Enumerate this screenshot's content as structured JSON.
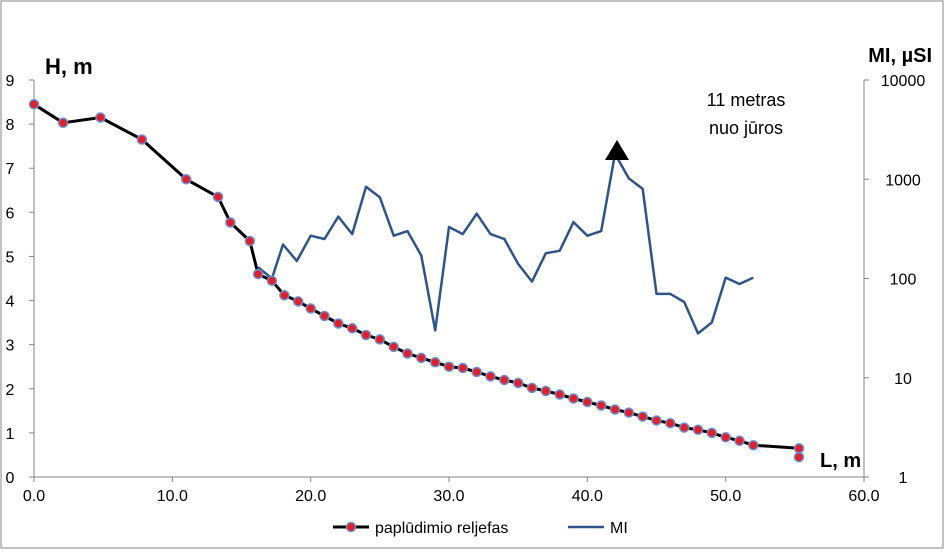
{
  "chart_data": {
    "type": "line",
    "y_left_label": "H, m",
    "y_right_label": "MI, µSI",
    "x_label": "L, m",
    "annotation": "11 metras nuo jūros",
    "x_range": [
      0,
      60
    ],
    "y_left_range": [
      0,
      9
    ],
    "y_right_range": [
      1,
      10000
    ],
    "y_right_scale": "log",
    "x_ticks": [
      "0.0",
      "10.0",
      "20.0",
      "30.0",
      "40.0",
      "50.0",
      "60.0"
    ],
    "y_left_ticks": [
      "0",
      "1",
      "2",
      "3",
      "4",
      "5",
      "6",
      "7",
      "8",
      "9"
    ],
    "y_right_ticks": [
      "1",
      "10",
      "100",
      "1000",
      "10000"
    ],
    "legend": {
      "position": "bottom"
    },
    "colors": {
      "profile_line": "#000000",
      "profile_marker_fill": "#e0202a",
      "profile_marker_stroke": "#6b8fd3",
      "mi_line": "#2f5489",
      "annotation_arrow": "#000000",
      "axis": "#868686"
    },
    "series": [
      {
        "name": "paplūdimio reljefas",
        "axis": "left",
        "points": [
          [
            0.0,
            8.45
          ],
          [
            2.1,
            8.03
          ],
          [
            4.8,
            8.15
          ],
          [
            7.8,
            7.65
          ],
          [
            11.0,
            6.75
          ],
          [
            13.3,
            6.35
          ],
          [
            14.2,
            5.77
          ],
          [
            15.6,
            5.35
          ],
          [
            16.2,
            4.6
          ],
          [
            17.2,
            4.45
          ],
          [
            18.1,
            4.12
          ],
          [
            19.1,
            3.98
          ],
          [
            20.0,
            3.82
          ],
          [
            21.0,
            3.65
          ],
          [
            22.0,
            3.48
          ],
          [
            23.0,
            3.37
          ],
          [
            24.0,
            3.22
          ],
          [
            25.0,
            3.12
          ],
          [
            26.0,
            2.95
          ],
          [
            27.0,
            2.8
          ],
          [
            28.0,
            2.7
          ],
          [
            29.0,
            2.6
          ],
          [
            30.0,
            2.5
          ],
          [
            31.0,
            2.47
          ],
          [
            32.0,
            2.38
          ],
          [
            33.0,
            2.28
          ],
          [
            34.0,
            2.2
          ],
          [
            35.0,
            2.13
          ],
          [
            36.0,
            2.02
          ],
          [
            37.0,
            1.95
          ],
          [
            38.0,
            1.87
          ],
          [
            39.0,
            1.78
          ],
          [
            40.0,
            1.7
          ],
          [
            41.0,
            1.62
          ],
          [
            42.0,
            1.53
          ],
          [
            43.0,
            1.46
          ],
          [
            44.0,
            1.37
          ],
          [
            45.0,
            1.28
          ],
          [
            46.0,
            1.22
          ],
          [
            47.0,
            1.12
          ],
          [
            48.0,
            1.07
          ],
          [
            49.0,
            1.0
          ],
          [
            50.0,
            0.9
          ],
          [
            51.0,
            0.82
          ],
          [
            52.0,
            0.72
          ],
          [
            55.3,
            0.65
          ]
        ],
        "extra_points": [
          [
            55.3,
            0.45
          ]
        ]
      },
      {
        "name": "MI",
        "axis": "right",
        "points": [
          [
            16.2,
            130
          ],
          [
            17.2,
            100
          ],
          [
            18.0,
            220
          ],
          [
            19.0,
            150
          ],
          [
            20.0,
            270
          ],
          [
            21.0,
            250
          ],
          [
            22.0,
            420
          ],
          [
            23.0,
            280
          ],
          [
            24.0,
            840
          ],
          [
            25.0,
            660
          ],
          [
            26.0,
            270
          ],
          [
            27.0,
            300
          ],
          [
            28.0,
            170
          ],
          [
            29.0,
            30
          ],
          [
            30.0,
            330
          ],
          [
            31.0,
            280
          ],
          [
            32.0,
            450
          ],
          [
            33.0,
            280
          ],
          [
            34.0,
            250
          ],
          [
            35.0,
            140
          ],
          [
            36.0,
            93
          ],
          [
            37.0,
            180
          ],
          [
            38.0,
            190
          ],
          [
            39.0,
            370
          ],
          [
            40.0,
            270
          ],
          [
            41.0,
            300
          ],
          [
            42.0,
            1800
          ],
          [
            43.0,
            1020
          ],
          [
            44.0,
            800
          ],
          [
            45.0,
            70
          ],
          [
            46.0,
            70
          ],
          [
            47.0,
            58
          ],
          [
            48.0,
            28
          ],
          [
            49.0,
            36
          ],
          [
            50.0,
            102
          ],
          [
            51.0,
            88
          ],
          [
            52.0,
            102
          ]
        ]
      }
    ]
  }
}
